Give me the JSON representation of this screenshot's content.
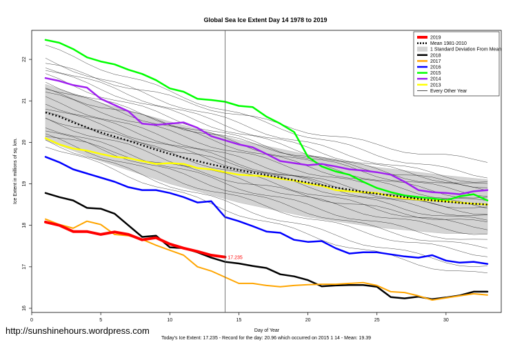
{
  "chart_data": {
    "type": "line",
    "title": "Global Sea Ice Extent Day 14 1978 to 2019",
    "xlabel": "Day of Year",
    "ylabel": "Ice Extent in millions of sq. km.",
    "xlim": [
      0,
      34
    ],
    "ylim": [
      15.9,
      22.7
    ],
    "x_ticks": [
      0,
      5,
      10,
      15,
      20,
      25,
      30
    ],
    "y_ticks": [
      16,
      17,
      18,
      19,
      20,
      21,
      22
    ],
    "grid": false,
    "legend_position": "top-right",
    "vline_x": 14,
    "annotation": {
      "text": "17.235",
      "x": 14,
      "y": 17.235,
      "color": "#ff0000"
    },
    "legend": [
      {
        "label": "2019",
        "color": "#ff0000",
        "style": "thick"
      },
      {
        "label": "Mean 1981-2010",
        "color": "#000000",
        "style": "dotted"
      },
      {
        "label": "1 Standard Deviation From Mean",
        "color": "#d3d3d3",
        "style": "band"
      },
      {
        "label": "2018",
        "color": "#000000",
        "style": "solid"
      },
      {
        "label": "2017",
        "color": "#ffa500",
        "style": "solid"
      },
      {
        "label": "2016",
        "color": "#0000ff",
        "style": "solid"
      },
      {
        "label": "2015",
        "color": "#00ff00",
        "style": "solid"
      },
      {
        "label": "2014",
        "color": "#a020f0",
        "style": "solid"
      },
      {
        "label": "2013",
        "color": "#ffff00",
        "style": "solid"
      },
      {
        "label": "Every Other Year",
        "color": "#000000",
        "style": "thin"
      }
    ],
    "mean_series": {
      "x": [
        1,
        2,
        3,
        4,
        5,
        6,
        7,
        8,
        9,
        10,
        11,
        12,
        13,
        14,
        15,
        16,
        17,
        18,
        19,
        20,
        21,
        22,
        23,
        24,
        25,
        26,
        27,
        28,
        29,
        30,
        31,
        32,
        33
      ],
      "values": [
        20.72,
        20.62,
        20.48,
        20.36,
        20.24,
        20.14,
        20.04,
        19.93,
        19.82,
        19.72,
        19.63,
        19.55,
        19.47,
        19.4,
        19.33,
        19.27,
        19.21,
        19.15,
        19.09,
        19.03,
        18.97,
        18.91,
        18.86,
        18.81,
        18.76,
        18.72,
        18.68,
        18.64,
        18.6,
        18.57,
        18.54,
        18.52,
        18.5
      ]
    },
    "std_band": {
      "x": [
        1,
        5,
        10,
        15,
        20,
        25,
        30,
        33
      ],
      "upper": [
        21.4,
        20.95,
        20.5,
        20.05,
        19.7,
        19.4,
        19.2,
        19.1
      ],
      "lower": [
        20.05,
        19.55,
        19.0,
        18.55,
        18.2,
        17.95,
        17.8,
        17.8
      ]
    },
    "series": [
      {
        "name": "2019",
        "color": "#ff0000",
        "width": 4,
        "x": [
          1,
          2,
          3,
          4,
          5,
          6,
          7,
          8,
          9,
          10,
          11,
          12,
          13,
          14
        ],
        "values": [
          18.08,
          18.0,
          17.85,
          17.85,
          17.78,
          17.84,
          17.78,
          17.65,
          17.7,
          17.55,
          17.45,
          17.37,
          17.28,
          17.235
        ]
      },
      {
        "name": "2018",
        "color": "#000000",
        "width": 2.5,
        "x": [
          1,
          2,
          3,
          4,
          5,
          6,
          7,
          8,
          9,
          10,
          11,
          12,
          13,
          14,
          15,
          16,
          17,
          18,
          19,
          20,
          21,
          22,
          23,
          24,
          25,
          26,
          27,
          28,
          29,
          30,
          31,
          32,
          33
        ],
        "values": [
          18.78,
          18.68,
          18.6,
          18.42,
          18.4,
          18.28,
          18.0,
          17.72,
          17.75,
          17.47,
          17.45,
          17.35,
          17.22,
          17.12,
          17.08,
          17.02,
          16.97,
          16.82,
          16.77,
          16.68,
          16.53,
          16.55,
          16.56,
          16.56,
          16.52,
          16.27,
          16.24,
          16.28,
          16.22,
          16.26,
          16.31,
          16.4,
          16.4
        ]
      },
      {
        "name": "2017",
        "color": "#ffa500",
        "width": 2,
        "x": [
          1,
          2,
          3,
          4,
          5,
          6,
          7,
          8,
          9,
          10,
          11,
          12,
          13,
          14,
          15,
          16,
          17,
          18,
          19,
          20,
          21,
          22,
          23,
          24,
          25,
          26,
          27,
          28,
          29,
          30,
          31,
          32,
          33
        ],
        "values": [
          18.15,
          18.02,
          17.93,
          18.1,
          18.02,
          17.78,
          17.75,
          17.66,
          17.52,
          17.4,
          17.28,
          17.0,
          16.9,
          16.75,
          16.6,
          16.6,
          16.55,
          16.52,
          16.55,
          16.57,
          16.58,
          16.58,
          16.6,
          16.62,
          16.55,
          16.4,
          16.38,
          16.3,
          16.2,
          16.25,
          16.3,
          16.35,
          16.32
        ]
      },
      {
        "name": "2016",
        "color": "#0000ff",
        "width": 2.5,
        "x": [
          1,
          2,
          3,
          4,
          5,
          6,
          7,
          8,
          9,
          10,
          11,
          12,
          13,
          14,
          15,
          16,
          17,
          18,
          19,
          20,
          21,
          22,
          23,
          24,
          25,
          26,
          27,
          28,
          29,
          30,
          31,
          32,
          33
        ],
        "values": [
          19.65,
          19.52,
          19.35,
          19.25,
          19.15,
          19.05,
          18.92,
          18.85,
          18.85,
          18.78,
          18.68,
          18.55,
          18.58,
          18.2,
          18.1,
          17.98,
          17.85,
          17.82,
          17.65,
          17.6,
          17.62,
          17.45,
          17.32,
          17.35,
          17.35,
          17.3,
          17.25,
          17.22,
          17.28,
          17.15,
          17.1,
          17.12,
          17.07
        ]
      },
      {
        "name": "2015",
        "color": "#00ff00",
        "width": 2.5,
        "x": [
          1,
          2,
          3,
          4,
          5,
          6,
          7,
          8,
          9,
          10,
          11,
          12,
          13,
          14,
          15,
          16,
          17,
          18,
          19,
          20,
          21,
          22,
          23,
          24,
          25,
          26,
          27,
          28,
          29,
          30,
          31,
          32,
          33
        ],
        "values": [
          22.47,
          22.4,
          22.25,
          22.05,
          21.95,
          21.88,
          21.75,
          21.65,
          21.5,
          21.3,
          21.22,
          21.05,
          21.02,
          20.98,
          20.88,
          20.85,
          20.62,
          20.45,
          20.25,
          19.65,
          19.42,
          19.3,
          19.22,
          19.05,
          18.9,
          18.8,
          18.72,
          18.68,
          18.65,
          18.6,
          18.7,
          18.75,
          18.6
        ]
      },
      {
        "name": "2014",
        "color": "#a020f0",
        "width": 2.5,
        "x": [
          1,
          2,
          3,
          4,
          5,
          6,
          7,
          8,
          9,
          10,
          11,
          12,
          13,
          14,
          15,
          16,
          17,
          18,
          19,
          20,
          21,
          22,
          23,
          24,
          25,
          26,
          27,
          28,
          29,
          30,
          31,
          32,
          33
        ],
        "values": [
          21.55,
          21.48,
          21.38,
          21.32,
          21.05,
          20.9,
          20.75,
          20.45,
          20.42,
          20.45,
          20.48,
          20.35,
          20.15,
          20.05,
          19.95,
          19.88,
          19.72,
          19.55,
          19.5,
          19.45,
          19.48,
          19.42,
          19.35,
          19.32,
          19.28,
          19.22,
          19.05,
          18.85,
          18.8,
          18.78,
          18.75,
          18.82,
          18.85
        ]
      },
      {
        "name": "2013",
        "color": "#ffff00",
        "width": 2.5,
        "x": [
          1,
          2,
          3,
          4,
          5,
          6,
          7,
          8,
          9,
          10,
          11,
          12,
          13,
          14,
          15,
          16,
          17,
          18,
          19,
          20,
          21,
          22,
          23,
          24,
          25,
          26,
          27,
          28,
          29,
          30,
          31,
          32,
          33
        ],
        "values": [
          20.1,
          19.95,
          19.85,
          19.8,
          19.72,
          19.65,
          19.62,
          19.55,
          19.48,
          19.5,
          19.48,
          19.38,
          19.35,
          19.28,
          19.22,
          19.2,
          19.18,
          19.12,
          19.08,
          19.0,
          18.95,
          18.85,
          18.82,
          18.8,
          18.78,
          18.7,
          18.65,
          18.62,
          18.6,
          18.58,
          18.55,
          18.52,
          18.5
        ]
      }
    ],
    "background_years": [
      {
        "y0": 22.3,
        "y33": 19.2
      },
      {
        "y0": 22.0,
        "y33": 19.05
      },
      {
        "y0": 21.85,
        "y33": 18.95
      },
      {
        "y0": 21.75,
        "y33": 18.85
      },
      {
        "y0": 21.6,
        "y33": 18.75
      },
      {
        "y0": 21.45,
        "y33": 18.65
      },
      {
        "y0": 21.35,
        "y33": 18.55
      },
      {
        "y0": 21.2,
        "y33": 18.45
      },
      {
        "y0": 21.05,
        "y33": 18.3
      },
      {
        "y0": 20.95,
        "y33": 18.2
      },
      {
        "y0": 20.85,
        "y33": 18.1
      },
      {
        "y0": 20.7,
        "y33": 17.95
      },
      {
        "y0": 20.55,
        "y33": 17.8
      },
      {
        "y0": 20.4,
        "y33": 17.6
      },
      {
        "y0": 20.3,
        "y33": 17.45
      },
      {
        "y0": 20.15,
        "y33": 17.3
      },
      {
        "y0": 20.05,
        "y33": 17.0
      },
      {
        "y0": 19.95,
        "y33": 16.8
      },
      {
        "y0": 21.9,
        "y33": 19.55
      },
      {
        "y0": 21.25,
        "y33": 18.95
      },
      {
        "y0": 20.6,
        "y33": 18.4
      },
      {
        "y0": 20.2,
        "y33": 18.05
      }
    ]
  },
  "footer": {
    "url": "http://sunshinehours.wordpress.com",
    "note": "Today's Ice Extent: 17.235  - Record for the day: 20.96 which occurred on 2015 1 14  - Mean: 19.39"
  }
}
